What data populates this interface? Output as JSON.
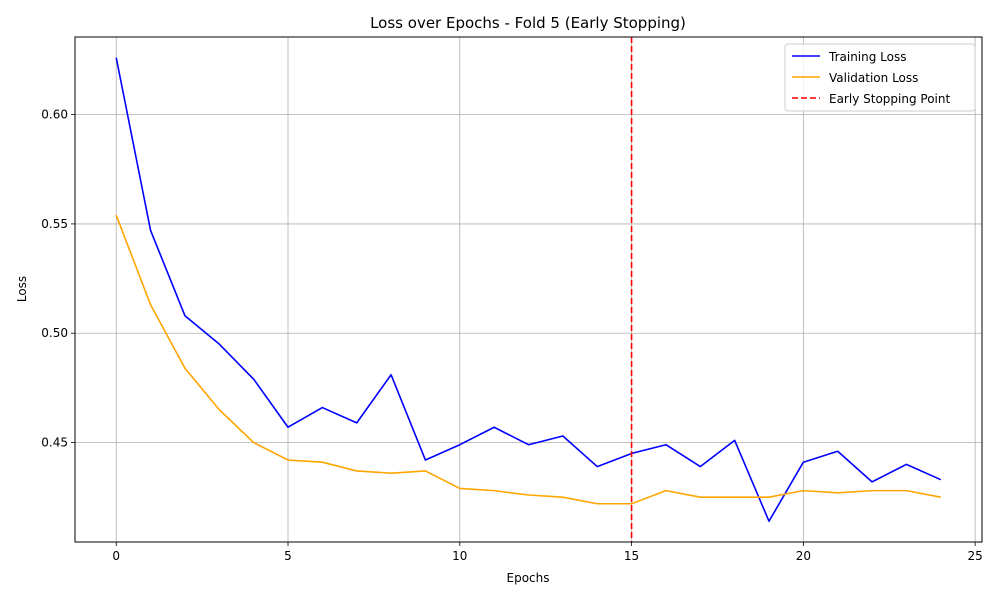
{
  "chart_data": {
    "type": "line",
    "title": "Loss over Epochs - Fold 5 (Early Stopping)",
    "xlabel": "Epochs",
    "ylabel": "Loss",
    "xlim": [
      -1.2,
      25.2
    ],
    "ylim": [
      0.4045,
      0.6355
    ],
    "xticks": [
      0,
      5,
      10,
      15,
      20,
      25
    ],
    "yticks": [
      0.45,
      0.5,
      0.55,
      0.6
    ],
    "xtick_labels": [
      "0",
      "5",
      "10",
      "15",
      "20",
      "25"
    ],
    "ytick_labels": [
      "0.45",
      "0.50",
      "0.55",
      "0.60"
    ],
    "grid": true,
    "legend_position": "top-right",
    "x": [
      0,
      1,
      2,
      3,
      4,
      5,
      6,
      7,
      8,
      9,
      10,
      11,
      12,
      13,
      14,
      15,
      16,
      17,
      18,
      19,
      20,
      21,
      22,
      23,
      24
    ],
    "series": [
      {
        "name": "Training Loss",
        "color": "#0000ff",
        "style": "solid",
        "values": [
          0.626,
          0.547,
          0.508,
          0.495,
          0.479,
          0.457,
          0.466,
          0.459,
          0.481,
          0.442,
          0.449,
          0.457,
          0.449,
          0.453,
          0.439,
          0.445,
          0.449,
          0.439,
          0.451,
          0.414,
          0.441,
          0.446,
          0.432,
          0.44,
          0.433
        ]
      },
      {
        "name": "Validation Loss",
        "color": "#ffa500",
        "style": "solid",
        "values": [
          0.554,
          0.513,
          0.484,
          0.465,
          0.45,
          0.442,
          0.441,
          0.437,
          0.436,
          0.437,
          0.429,
          0.428,
          0.426,
          0.425,
          0.422,
          0.422,
          0.428,
          0.425,
          0.425,
          0.425,
          0.428,
          0.427,
          0.428,
          0.428,
          0.425
        ]
      }
    ],
    "vline": {
      "name": "Early Stopping Point",
      "x": 15,
      "color": "#ff0000",
      "style": "dashed"
    }
  }
}
